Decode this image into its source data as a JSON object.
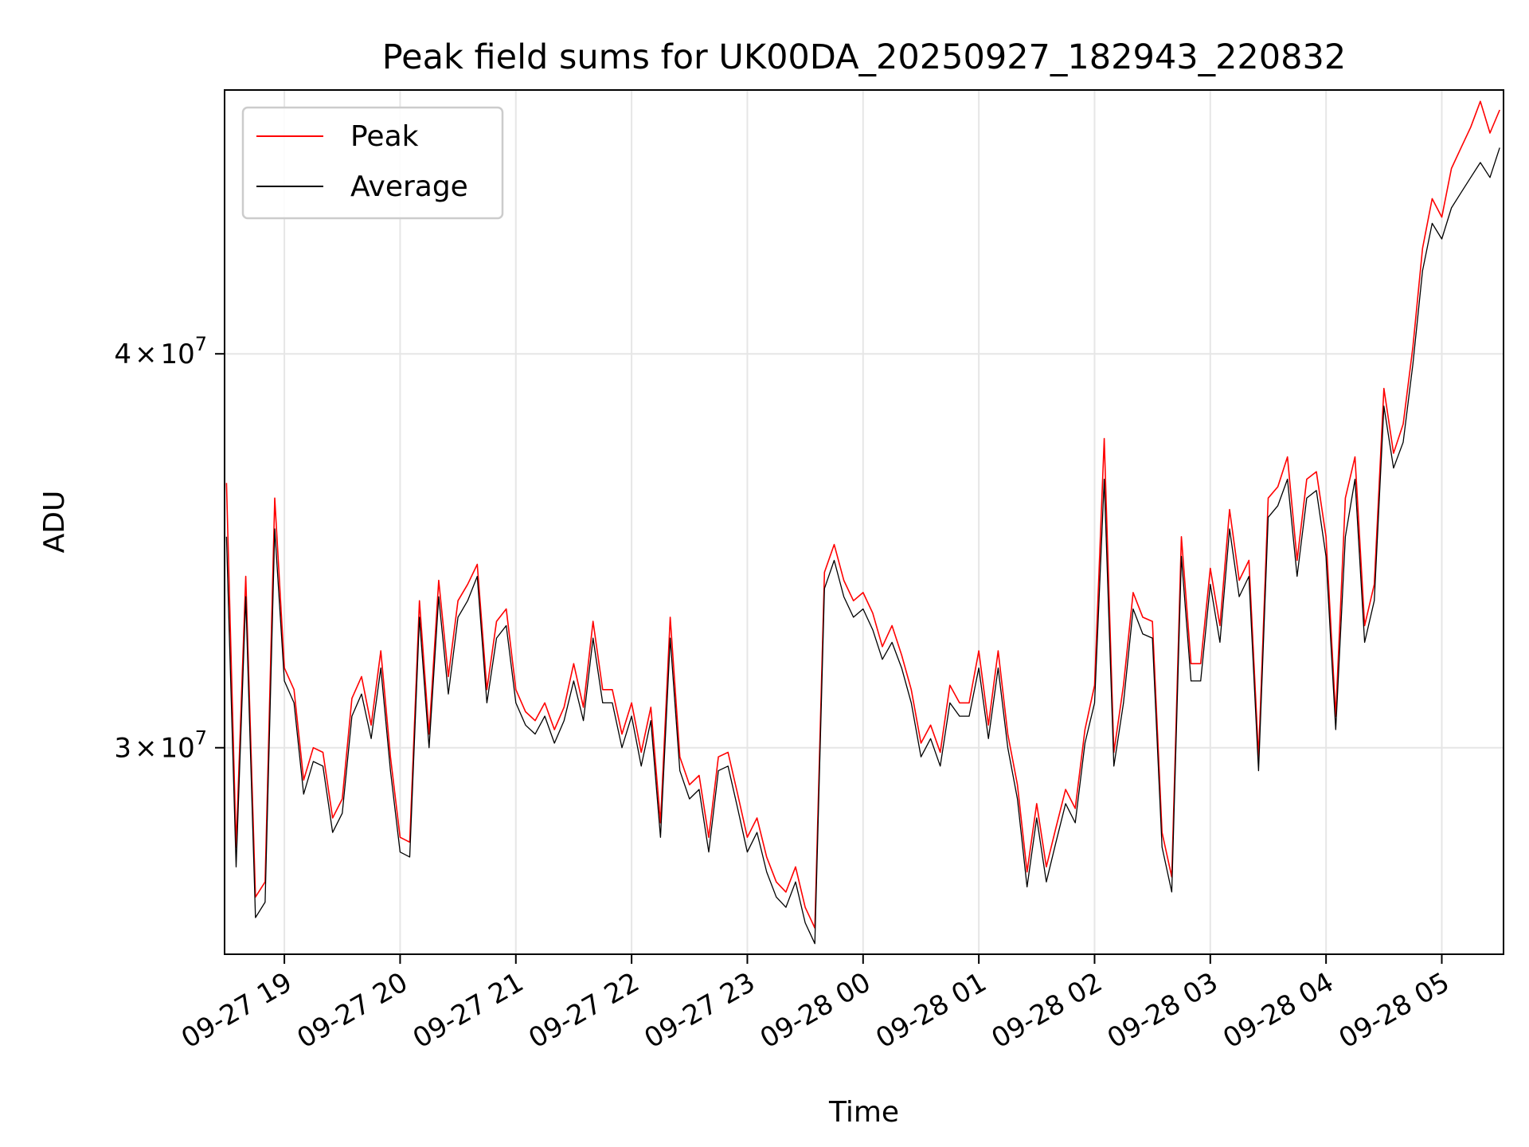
{
  "chart_data": {
    "type": "line",
    "title": "Peak field sums for UK00DA_20250927_182943_220832",
    "xlabel": "Time",
    "ylabel": "ADU",
    "grid": true,
    "legend_position": "top-left",
    "yscale": "log",
    "xlim": [
      "2025-09-27 18:29",
      "2025-09-28 05:32"
    ],
    "ylim": [
      25800000,
      48500000
    ],
    "x_ticks": [
      {
        "value": "2025-09-27 19:00",
        "label": "09-27 19"
      },
      {
        "value": "2025-09-27 20:00",
        "label": "09-27 20"
      },
      {
        "value": "2025-09-27 21:00",
        "label": "09-27 21"
      },
      {
        "value": "2025-09-27 22:00",
        "label": "09-27 22"
      },
      {
        "value": "2025-09-27 23:00",
        "label": "09-27 23"
      },
      {
        "value": "2025-09-28 00:00",
        "label": "09-28 00"
      },
      {
        "value": "2025-09-28 01:00",
        "label": "09-28 01"
      },
      {
        "value": "2025-09-28 02:00",
        "label": "09-28 02"
      },
      {
        "value": "2025-09-28 03:00",
        "label": "09-28 03"
      },
      {
        "value": "2025-09-28 04:00",
        "label": "09-28 04"
      },
      {
        "value": "2025-09-28 05:00",
        "label": "09-28 05"
      }
    ],
    "y_ticks": [
      {
        "value": 30000000,
        "mantissa": "3",
        "times": "×",
        "base": "10",
        "exponent": "7"
      },
      {
        "value": 40000000,
        "mantissa": "4",
        "times": "×",
        "base": "10",
        "exponent": "7"
      }
    ],
    "x": [
      "2025-09-27 18:30",
      "2025-09-27 18:35",
      "2025-09-27 18:40",
      "2025-09-27 18:45",
      "2025-09-27 18:50",
      "2025-09-27 18:55",
      "2025-09-27 19:00",
      "2025-09-27 19:05",
      "2025-09-27 19:10",
      "2025-09-27 19:15",
      "2025-09-27 19:20",
      "2025-09-27 19:25",
      "2025-09-27 19:30",
      "2025-09-27 19:35",
      "2025-09-27 19:40",
      "2025-09-27 19:45",
      "2025-09-27 19:50",
      "2025-09-27 19:55",
      "2025-09-27 20:00",
      "2025-09-27 20:05",
      "2025-09-27 20:10",
      "2025-09-27 20:15",
      "2025-09-27 20:20",
      "2025-09-27 20:25",
      "2025-09-27 20:30",
      "2025-09-27 20:35",
      "2025-09-27 20:40",
      "2025-09-27 20:45",
      "2025-09-27 20:50",
      "2025-09-27 20:55",
      "2025-09-27 21:00",
      "2025-09-27 21:05",
      "2025-09-27 21:10",
      "2025-09-27 21:15",
      "2025-09-27 21:20",
      "2025-09-27 21:25",
      "2025-09-27 21:30",
      "2025-09-27 21:35",
      "2025-09-27 21:40",
      "2025-09-27 21:45",
      "2025-09-27 21:50",
      "2025-09-27 21:55",
      "2025-09-27 22:00",
      "2025-09-27 22:05",
      "2025-09-27 22:10",
      "2025-09-27 22:15",
      "2025-09-27 22:20",
      "2025-09-27 22:25",
      "2025-09-27 22:30",
      "2025-09-27 22:35",
      "2025-09-27 22:40",
      "2025-09-27 22:45",
      "2025-09-27 22:50",
      "2025-09-27 22:55",
      "2025-09-27 23:00",
      "2025-09-27 23:05",
      "2025-09-27 23:10",
      "2025-09-27 23:15",
      "2025-09-27 23:20",
      "2025-09-27 23:25",
      "2025-09-27 23:30",
      "2025-09-27 23:35",
      "2025-09-27 23:40",
      "2025-09-27 23:45",
      "2025-09-27 23:50",
      "2025-09-27 23:55",
      "2025-09-28 00:00",
      "2025-09-28 00:05",
      "2025-09-28 00:10",
      "2025-09-28 00:15",
      "2025-09-28 00:20",
      "2025-09-28 00:25",
      "2025-09-28 00:30",
      "2025-09-28 00:35",
      "2025-09-28 00:40",
      "2025-09-28 00:45",
      "2025-09-28 00:50",
      "2025-09-28 00:55",
      "2025-09-28 01:00",
      "2025-09-28 01:05",
      "2025-09-28 01:10",
      "2025-09-28 01:15",
      "2025-09-28 01:20",
      "2025-09-28 01:25",
      "2025-09-28 01:30",
      "2025-09-28 01:35",
      "2025-09-28 01:40",
      "2025-09-28 01:45",
      "2025-09-28 01:50",
      "2025-09-28 01:55",
      "2025-09-28 02:00",
      "2025-09-28 02:05",
      "2025-09-28 02:10",
      "2025-09-28 02:15",
      "2025-09-28 02:20",
      "2025-09-28 02:25",
      "2025-09-28 02:30",
      "2025-09-28 02:35",
      "2025-09-28 02:40",
      "2025-09-28 02:45",
      "2025-09-28 02:50",
      "2025-09-28 02:55",
      "2025-09-28 03:00",
      "2025-09-28 03:05",
      "2025-09-28 03:10",
      "2025-09-28 03:15",
      "2025-09-28 03:20",
      "2025-09-28 03:25",
      "2025-09-28 03:30",
      "2025-09-28 03:35",
      "2025-09-28 03:40",
      "2025-09-28 03:45",
      "2025-09-28 03:50",
      "2025-09-28 03:55",
      "2025-09-28 04:00",
      "2025-09-28 04:05",
      "2025-09-28 04:10",
      "2025-09-28 04:15",
      "2025-09-28 04:20",
      "2025-09-28 04:25",
      "2025-09-28 04:30",
      "2025-09-28 04:35",
      "2025-09-28 04:40",
      "2025-09-28 04:45",
      "2025-09-28 04:50",
      "2025-09-28 04:55",
      "2025-09-28 05:00",
      "2025-09-28 05:05",
      "2025-09-28 05:10",
      "2025-09-28 05:15",
      "2025-09-28 05:20",
      "2025-09-28 05:25",
      "2025-09-28 05:30"
    ],
    "series": [
      {
        "name": "Average",
        "color": "#000000",
        "values": [
          35000000,
          27500000,
          33500000,
          26500000,
          26800000,
          35200000,
          31500000,
          31000000,
          29000000,
          29700000,
          29600000,
          28200000,
          28600000,
          30700000,
          31200000,
          30200000,
          31800000,
          29500000,
          27800000,
          27700000,
          33000000,
          30000000,
          33500000,
          31200000,
          33000000,
          33400000,
          34000000,
          31000000,
          32500000,
          32800000,
          31000000,
          30500000,
          30300000,
          30700000,
          30100000,
          30600000,
          31500000,
          30600000,
          32500000,
          31000000,
          31000000,
          30000000,
          30700000,
          29600000,
          30600000,
          28100000,
          32500000,
          29500000,
          28900000,
          29100000,
          27800000,
          29500000,
          29600000,
          28700000,
          27800000,
          28200000,
          27400000,
          26900000,
          26700000,
          27200000,
          26400000,
          26000000,
          33700000,
          34400000,
          33500000,
          33000000,
          33200000,
          32700000,
          32000000,
          32400000,
          31800000,
          31000000,
          29800000,
          30200000,
          29600000,
          31000000,
          30700000,
          30700000,
          31800000,
          30200000,
          31800000,
          30000000,
          28900000,
          27100000,
          28500000,
          27200000,
          28000000,
          28800000,
          28400000,
          30100000,
          31000000,
          36500000,
          29600000,
          31000000,
          33200000,
          32600000,
          32500000,
          27900000,
          27000000,
          34500000,
          31500000,
          31500000,
          33800000,
          32400000,
          35200000,
          33500000,
          34000000,
          29500000,
          35500000,
          35800000,
          36500000,
          34000000,
          36000000,
          36200000,
          34500000,
          30400000,
          35000000,
          36500000,
          32400000,
          33400000,
          38500000,
          36800000,
          37500000,
          39700000,
          42500000,
          44000000,
          43500000,
          44500000,
          45000000,
          45500000,
          46000000,
          45500000,
          46500000
        ]
      },
      {
        "name": "Peak",
        "color": "#ff0000",
        "values": [
          36400000,
          27900000,
          34000000,
          26900000,
          27200000,
          36000000,
          31800000,
          31300000,
          29300000,
          30000000,
          29900000,
          28500000,
          28900000,
          31100000,
          31600000,
          30500000,
          32200000,
          29800000,
          28100000,
          28000000,
          33400000,
          30300000,
          33900000,
          31600000,
          33400000,
          33800000,
          34300000,
          31300000,
          32900000,
          33200000,
          31300000,
          30800000,
          30600000,
          31000000,
          30400000,
          30900000,
          31900000,
          30900000,
          32900000,
          31300000,
          31300000,
          30300000,
          31000000,
          29900000,
          30900000,
          28400000,
          33000000,
          29800000,
          29200000,
          29400000,
          28100000,
          29800000,
          29900000,
          29000000,
          28100000,
          28500000,
          27700000,
          27200000,
          27000000,
          27500000,
          26700000,
          26300000,
          34100000,
          34800000,
          33900000,
          33400000,
          33600000,
          33100000,
          32300000,
          32800000,
          32100000,
          31300000,
          30100000,
          30500000,
          29900000,
          31400000,
          31000000,
          31000000,
          32200000,
          30500000,
          32200000,
          30300000,
          29200000,
          27400000,
          28800000,
          27500000,
          28300000,
          29100000,
          28700000,
          30400000,
          31400000,
          37600000,
          29900000,
          31400000,
          33600000,
          33000000,
          32900000,
          28200000,
          27300000,
          35000000,
          31900000,
          31900000,
          34200000,
          32800000,
          35700000,
          33900000,
          34400000,
          29800000,
          36000000,
          36300000,
          37100000,
          34400000,
          36500000,
          36700000,
          35000000,
          30700000,
          36000000,
          37100000,
          32800000,
          33800000,
          39000000,
          37200000,
          38000000,
          40200000,
          43200000,
          44800000,
          44200000,
          45800000,
          46500000,
          47200000,
          48100000,
          47000000,
          47800000
        ]
      }
    ]
  }
}
